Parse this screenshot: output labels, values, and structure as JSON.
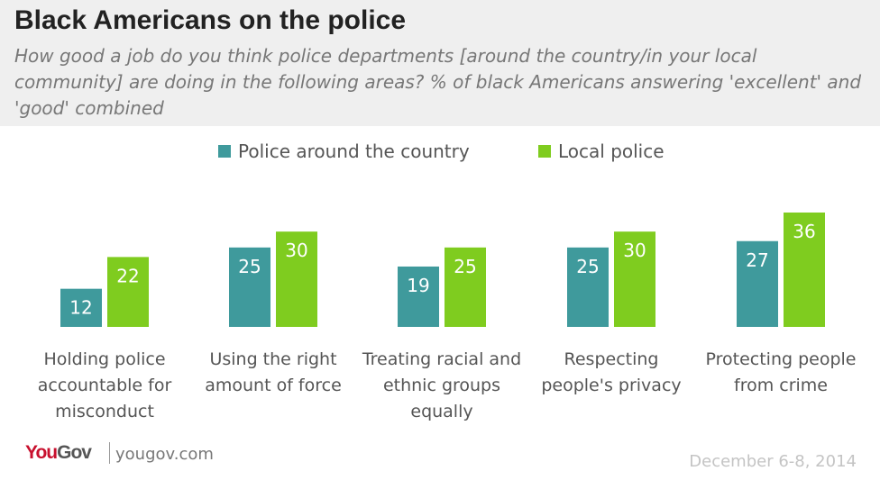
{
  "header": {
    "title": "Black Americans on the police",
    "subtitle": "How good a job do you think police departments [around the country/in your local community] are doing in the following areas? % of black Americans answering 'excellent' and 'good' combined"
  },
  "colors": {
    "country": "#3f9a9c",
    "local": "#7fcc1f",
    "header_bg": "#efefef",
    "brand_you": "#c8102e",
    "brand_gov": "#555555"
  },
  "chart_data": {
    "type": "bar",
    "title": "Black Americans on the police",
    "categories": [
      "Holding police accountable for misconduct",
      "Using the right amount of force",
      "Treating racial and ethnic groups equally",
      "Respecting people's privacy",
      "Protecting people from crime"
    ],
    "category_lines": [
      [
        "Holding police",
        "accountable for",
        "misconduct"
      ],
      [
        "Using the right",
        "amount of force"
      ],
      [
        "Treating racial and",
        "ethnic groups",
        "equally"
      ],
      [
        "Respecting",
        "people's privacy"
      ],
      [
        "Protecting people",
        "from crime"
      ]
    ],
    "series": [
      {
        "name": "Police around the country",
        "values": [
          12,
          25,
          19,
          25,
          27
        ]
      },
      {
        "name": "Local police",
        "values": [
          22,
          30,
          25,
          30,
          36
        ]
      }
    ],
    "ylim": [
      0,
      36
    ],
    "grid": false,
    "legend_position": "top-center",
    "data_labels": true
  },
  "footer": {
    "logo_you": "You",
    "logo_gov": "Gov",
    "site": "yougov.com",
    "date": "December 6-8, 2014"
  }
}
